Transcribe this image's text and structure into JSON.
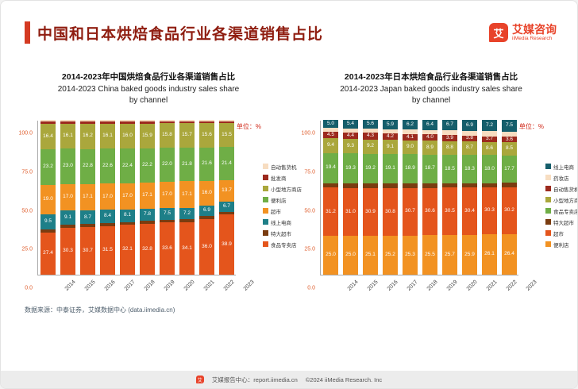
{
  "header": {
    "title": "中国和日本烘焙食品行业各渠道销售占比",
    "logo_cn": "艾媒咨询",
    "logo_en": "iiMedia Research",
    "logo_glyph": "艾"
  },
  "chart_data": [
    {
      "id": "china",
      "type": "bar",
      "stacked": true,
      "title_cn": "2014-2023年中国烘焙食品行业各渠道销售占比",
      "title_en1": "2014-2023 China baked goods industry sales share",
      "title_en2": "by channel",
      "unit_label": "单位：%",
      "ylim": [
        0,
        100
      ],
      "yticks": [
        "100.0",
        "75.0",
        "50.0",
        "25.0",
        "0.0"
      ],
      "grid": false,
      "legend_position": "right",
      "categories": [
        "2014",
        "2015",
        "2016",
        "2017",
        "2018",
        "2019",
        "2020",
        "2021",
        "2022",
        "2023"
      ],
      "series": [
        {
          "name": "食品专卖店",
          "color": "#e4551c",
          "values": [
            27.4,
            30.3,
            30.7,
            31.5,
            32.1,
            32.8,
            33.6,
            34.1,
            36.0,
            38.9
          ]
        },
        {
          "name": "特大超市",
          "color": "#7a3c10",
          "values": [
            2.0,
            2.0,
            2.0,
            2.0,
            2.0,
            1.9,
            1.9,
            1.9,
            1.8,
            1.8
          ]
        },
        {
          "name": "线上电商",
          "color": "#1e7f88",
          "values": [
            9.5,
            9.1,
            8.7,
            8.4,
            8.1,
            7.8,
            7.5,
            7.2,
            6.9,
            6.7
          ]
        },
        {
          "name": "超市",
          "color": "#f29222",
          "values": [
            19.0,
            17.0,
            17.1,
            17.0,
            17.0,
            17.1,
            17.0,
            17.1,
            16.0,
            13.7
          ]
        },
        {
          "name": "便利店",
          "color": "#6fae46",
          "values": [
            23.2,
            23.0,
            22.8,
            22.6,
            22.4,
            22.2,
            22.0,
            21.8,
            21.6,
            21.4
          ]
        },
        {
          "name": "小型地方商店",
          "color": "#aaa73c",
          "values": [
            16.4,
            16.1,
            16.2,
            16.1,
            16.0,
            15.9,
            15.8,
            15.7,
            15.6,
            15.5
          ]
        },
        {
          "name": "批发商",
          "color": "#9c2a1e",
          "values": [
            1.5,
            1.5,
            1.5,
            1.4,
            1.4,
            1.4,
            1.3,
            1.3,
            1.2,
            1.2
          ]
        },
        {
          "name": "自动售货机",
          "color": "#f7ddc1",
          "values": [
            1.0,
            1.0,
            1.0,
            1.0,
            1.0,
            0.9,
            0.9,
            0.9,
            0.9,
            0.8
          ]
        }
      ]
    },
    {
      "id": "japan",
      "type": "bar",
      "stacked": true,
      "title_cn": "2014-2023年日本烘焙食品行业各渠道销售占比",
      "title_en1": "2014-2023 Japan baked goods industry sales share",
      "title_en2": "by channel",
      "unit_label": "单位：%",
      "ylim": [
        0,
        100
      ],
      "yticks": [
        "100.0",
        "75.0",
        "50.0",
        "25.0",
        "0.0"
      ],
      "grid": false,
      "legend_position": "right",
      "categories": [
        "2014",
        "2015",
        "2016",
        "2017",
        "2018",
        "2019",
        "2020",
        "2021",
        "2022",
        "2023"
      ],
      "series": [
        {
          "name": "便利店",
          "color": "#f29222",
          "values": [
            25.0,
            25.0,
            25.1,
            25.2,
            25.3,
            25.5,
            25.7,
            25.9,
            26.1,
            26.4
          ]
        },
        {
          "name": "超市",
          "color": "#e4551c",
          "values": [
            31.2,
            31.0,
            30.9,
            30.8,
            30.7,
            30.6,
            30.5,
            30.4,
            30.3,
            30.2
          ]
        },
        {
          "name": "特大超市",
          "color": "#7a3c10",
          "values": [
            3.0,
            3.0,
            3.0,
            2.9,
            2.9,
            2.9,
            2.8,
            2.8,
            2.8,
            2.7
          ]
        },
        {
          "name": "食品专卖店",
          "color": "#6fae46",
          "values": [
            19.4,
            19.3,
            19.2,
            19.1,
            18.9,
            18.7,
            18.5,
            18.3,
            18.0,
            17.7
          ]
        },
        {
          "name": "小型地方商店",
          "color": "#aaa73c",
          "values": [
            9.4,
            9.3,
            9.2,
            9.1,
            9.0,
            8.9,
            8.8,
            8.7,
            8.6,
            8.5
          ]
        },
        {
          "name": "自动售货机",
          "color": "#9c2a1e",
          "values": [
            4.5,
            4.4,
            4.3,
            4.2,
            4.1,
            4.0,
            3.9,
            3.8,
            3.7,
            3.6
          ]
        },
        {
          "name": "药妆店",
          "color": "#f7ddc1",
          "values": [
            2.5,
            2.6,
            2.7,
            2.8,
            2.9,
            3.0,
            3.1,
            3.2,
            3.3,
            3.4
          ]
        },
        {
          "name": "线上电商",
          "color": "#155e6b",
          "values": [
            5.0,
            5.4,
            5.6,
            5.9,
            6.2,
            6.4,
            6.7,
            6.9,
            7.2,
            7.5
          ]
        }
      ]
    }
  ],
  "footer": {
    "source": "数据来源：中泰证券，艾媒数据中心 (data.iimedia.cn)",
    "report_center": "艾媒报告中心：report.iimedia.cn",
    "copyright": "©2024 iiMedia Research. Inc"
  }
}
